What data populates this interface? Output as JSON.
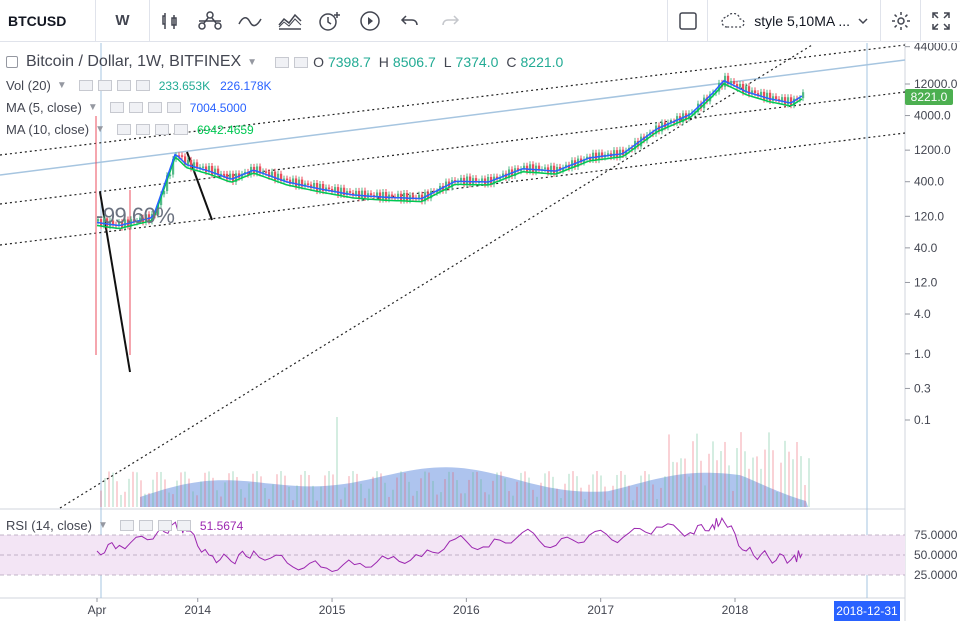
{
  "toolbar": {
    "symbol": "BTCUSD",
    "interval": "W",
    "style_label": "style 5,10MA ...",
    "icons": [
      "bar-chart-icon",
      "compare-icon",
      "indicators-icon",
      "templates-icon",
      "alert-icon",
      "replay-icon",
      "undo-icon",
      "redo-icon",
      "fullscreen-toggle-icon",
      "cloud-icon",
      "settings-icon",
      "expand-icon"
    ]
  },
  "legend": {
    "title": "Bitcoin / Dollar, 1W, BITFINEX",
    "open_label": "O",
    "open": "7398.7",
    "high_label": "H",
    "high": "8506.7",
    "low_label": "L",
    "low": "7374.0",
    "close_label": "C",
    "close": "8221.0",
    "vol_label": "Vol (20)",
    "vol_value": "233.653K",
    "vol_ma": "226.178K",
    "ma5_label": "MA (5, close)",
    "ma5_value": "7004.5000",
    "ma10_label": "MA (10, close)",
    "ma10_value": "6942.4659",
    "rsi_label": "RSI (14, close)",
    "rsi_value": "51.5674"
  },
  "price_tag": "8221.0",
  "date_tag": "2018-12-31",
  "annotation_text": "-99.60%",
  "colors": {
    "up": "#53b987",
    "down": "#eb4d5c",
    "ma5": "#2962ff",
    "ma10": "#00c853",
    "volume_area": "#6b93e0",
    "rsi_line": "#9c27b0",
    "rsi_band": "#f3e5f5",
    "channel_line": "#a6c5e0",
    "price_tag": "#4caf50",
    "date_tag": "#2962ff"
  },
  "chart_data": {
    "type": "line",
    "y_scale": "log",
    "y_ticks": [
      "44000.0",
      "12000.0",
      "4000.0",
      "1200.0",
      "400.0",
      "120.0",
      "40.0",
      "12.0",
      "4.0",
      "1.0",
      "0.3",
      "0.1"
    ],
    "x_ticks": [
      "Apr",
      "2014",
      "2015",
      "2016",
      "2017",
      "2018"
    ],
    "rsi_ticks": [
      "75.0000",
      "50.0000",
      "25.0000"
    ],
    "price_series": {
      "name": "BTCUSD close",
      "x": [
        "2013-04",
        "2013-06",
        "2013-09",
        "2013-11",
        "2013-12",
        "2014-02",
        "2014-04",
        "2014-06",
        "2014-09",
        "2014-12",
        "2015-03",
        "2015-06",
        "2015-09",
        "2015-12",
        "2016-03",
        "2016-06",
        "2016-09",
        "2016-12",
        "2017-03",
        "2017-06",
        "2017-09",
        "2017-11",
        "2017-12",
        "2018-02",
        "2018-04",
        "2018-06",
        "2018-07"
      ],
      "y": [
        100,
        90,
        120,
        1100,
        750,
        600,
        450,
        620,
        410,
        320,
        260,
        240,
        230,
        420,
        410,
        650,
        600,
        950,
        1100,
        2600,
        4300,
        9000,
        14000,
        9500,
        7500,
        6400,
        8221
      ]
    },
    "rsi_series": {
      "name": "RSI (14, close)",
      "values": [
        55,
        62,
        70,
        91,
        80,
        50,
        42,
        55,
        40,
        35,
        38,
        45,
        48,
        70,
        60,
        78,
        62,
        75,
        72,
        85,
        78,
        88,
        92,
        55,
        47,
        44,
        51.57
      ]
    }
  }
}
